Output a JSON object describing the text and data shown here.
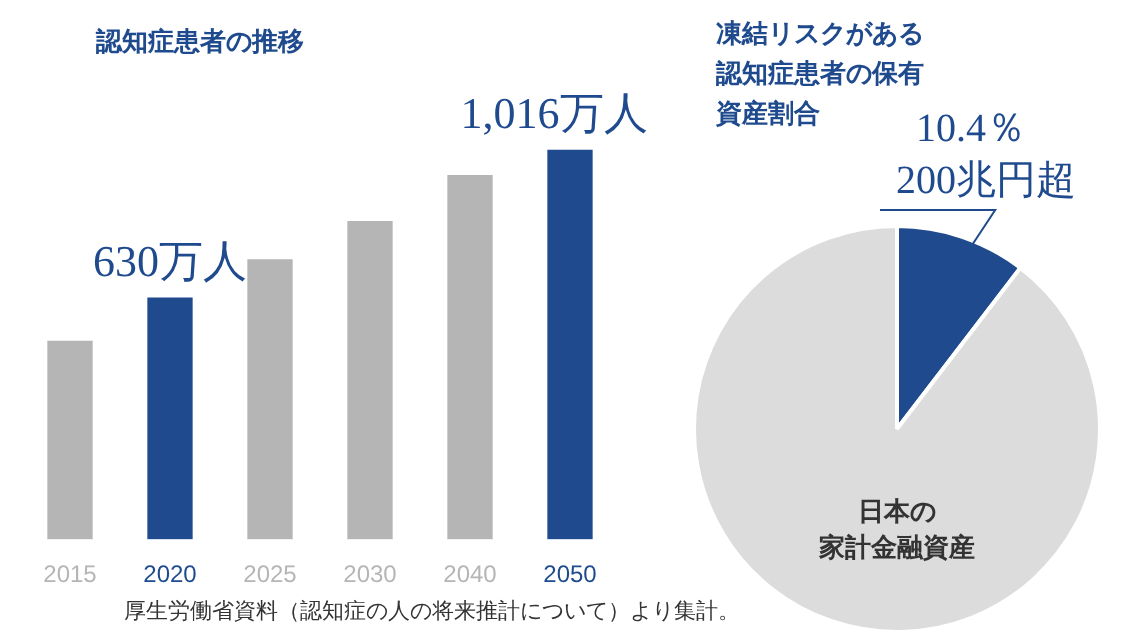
{
  "chart_data": [
    {
      "type": "bar",
      "title": "認知症患者の推移",
      "categories": [
        "2015",
        "2020",
        "2025",
        "2030",
        "2040",
        "2050"
      ],
      "values": [
        517,
        630,
        730,
        830,
        950,
        1016
      ],
      "colors": [
        "#b5b5b5",
        "#1f4b8e",
        "#b5b5b5",
        "#b5b5b5",
        "#b5b5b5",
        "#1f4b8e"
      ],
      "value_labels": [
        null,
        "630万人",
        null,
        null,
        null,
        "1,016万人"
      ],
      "legend": false,
      "annotations": [
        "厚生労働省資料（認知症の人の将来推計について）より集計。"
      ]
    },
    {
      "type": "pie",
      "title": "凍結リスクがある認知症患者の保有資産割合",
      "categories": [
        "200兆円超",
        "日本の家計金融資産"
      ],
      "values": [
        10.4,
        89.6
      ],
      "colors": [
        "#1f4b8e",
        "#dcdcdc"
      ],
      "value_labels": [
        "10.4％",
        null
      ],
      "legend": false
    }
  ]
}
